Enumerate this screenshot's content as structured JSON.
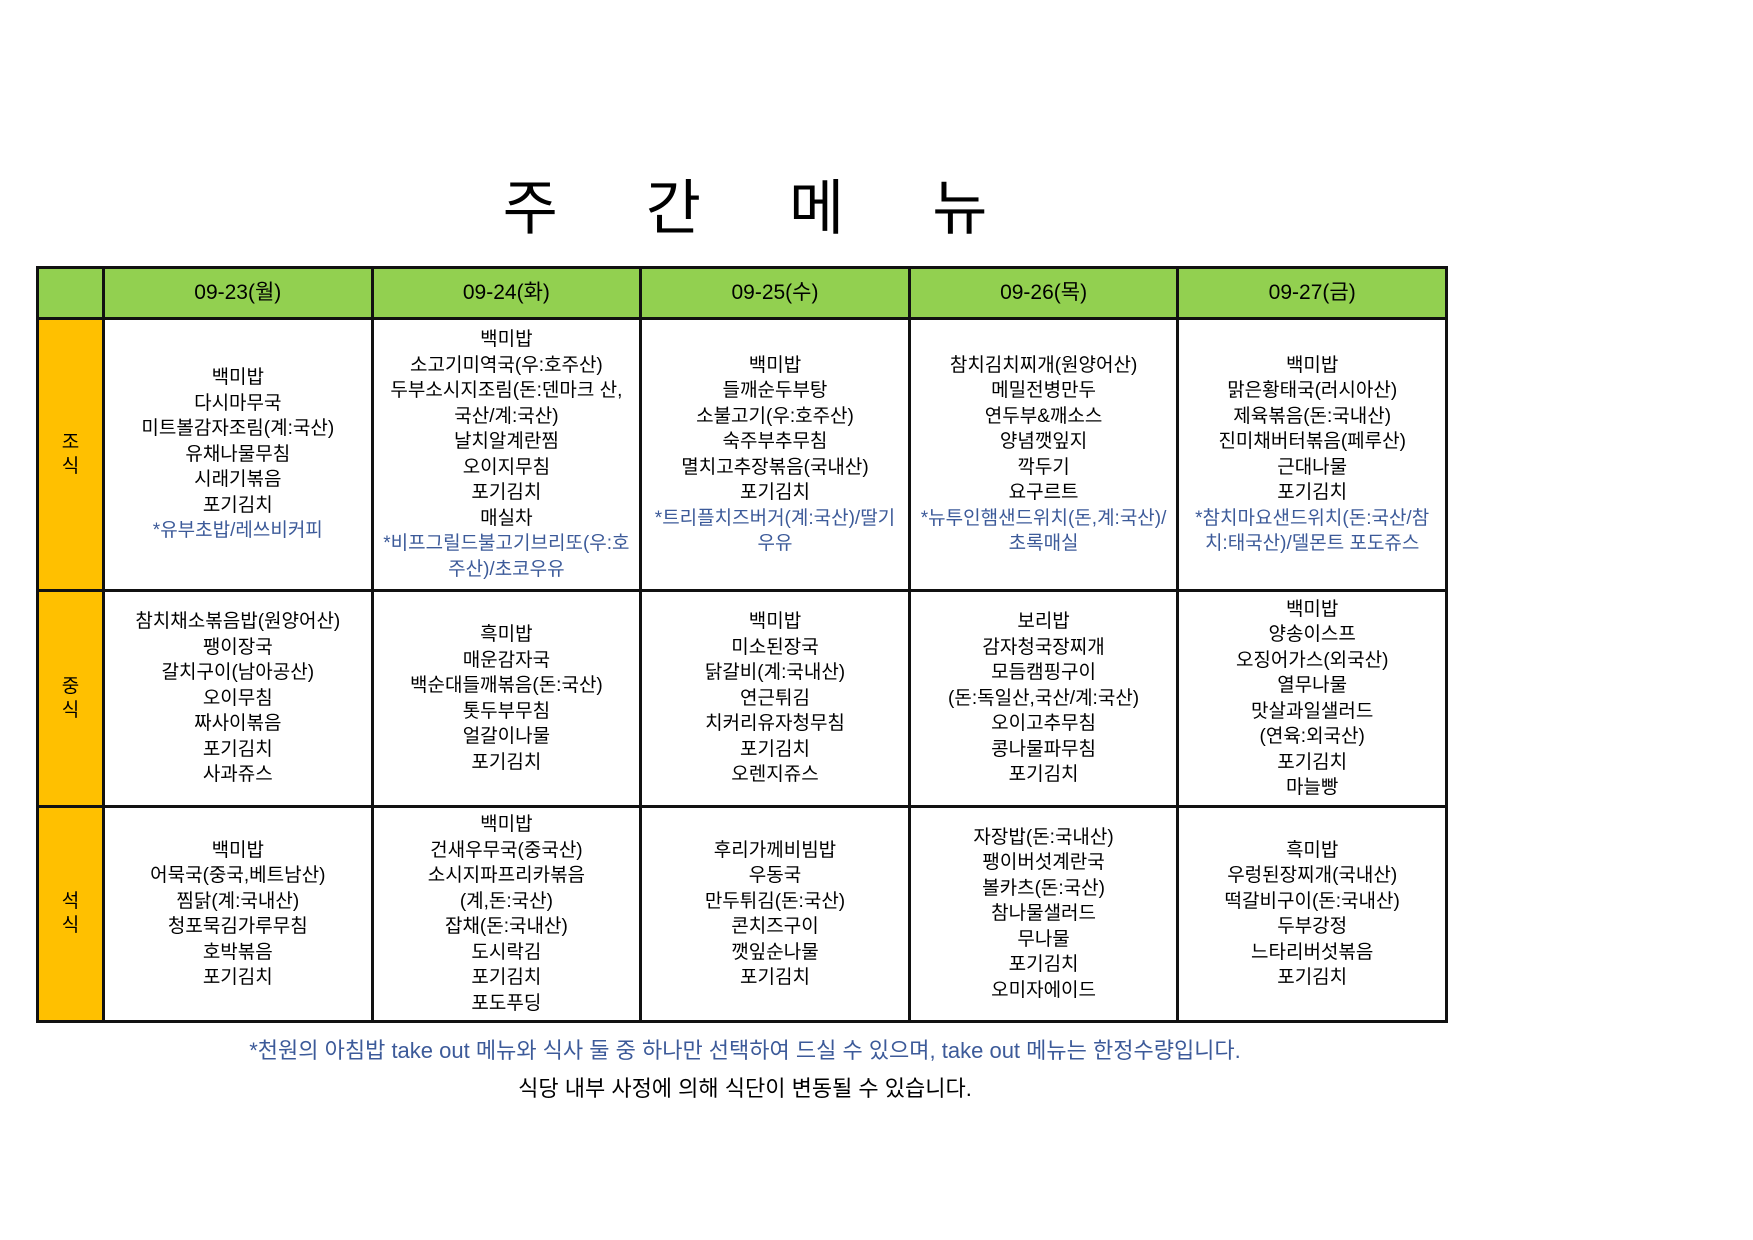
{
  "title": [
    "주",
    "간",
    "메",
    "뉴"
  ],
  "colors": {
    "header_bg": "#92d050",
    "meal_bg": "#ffc000",
    "takeout_text": "#3c5a99"
  },
  "days": [
    "09-23(월)",
    "09-24(화)",
    "09-25(수)",
    "09-26(목)",
    "09-27(금)"
  ],
  "meals": [
    {
      "label": [
        "조",
        "식"
      ],
      "cells": [
        {
          "items": [
            "백미밥",
            "다시마무국",
            "미트볼감자조림(계:국산)",
            "유채나물무침",
            "시래기볶음",
            "포기김치"
          ],
          "takeout": "*유부초밥/레쓰비커피"
        },
        {
          "items": [
            "백미밥",
            "소고기미역국(우:호주산)",
            "두부소시지조림(돈:덴마크 산, 국산/계:국산)",
            "날치알계란찜",
            "오이지무침",
            "포기김치",
            "매실차"
          ],
          "takeout": "*비프그릴드불고기브리또(우:호주산)/초코우유"
        },
        {
          "items": [
            "백미밥",
            "들깨순두부탕",
            "소불고기(우:호주산)",
            "숙주부추무침",
            "멸치고추장볶음(국내산)",
            "포기김치"
          ],
          "takeout": "*트리플치즈버거(계:국산)/딸기우유"
        },
        {
          "items": [
            "참치김치찌개(원양어산)",
            "메밀전병만두",
            "연두부&깨소스",
            "양념깻잎지",
            "깍두기",
            "요구르트"
          ],
          "takeout": "*뉴투인햄샌드위치(돈,계:국산)/초록매실"
        },
        {
          "items": [
            "백미밥",
            "맑은황태국(러시아산)",
            "제육볶음(돈:국내산)",
            "진미채버터볶음(페루산)",
            "근대나물",
            "포기김치"
          ],
          "takeout": "*참치마요샌드위치(돈:국산/참치:태국산)/델몬트 포도쥬스"
        }
      ]
    },
    {
      "label": [
        "중",
        "식"
      ],
      "cells": [
        {
          "items": [
            "참치채소볶음밥(원양어산)",
            "팽이장국",
            "갈치구이(남아공산)",
            "오이무침",
            "짜사이볶음",
            "포기김치",
            "사과쥬스"
          ]
        },
        {
          "items": [
            "흑미밥",
            "매운감자국",
            "백순대들깨볶음(돈:국산)",
            "톳두부무침",
            "얼갈이나물",
            "포기김치"
          ]
        },
        {
          "items": [
            "백미밥",
            "미소된장국",
            "닭갈비(계:국내산)",
            "연근튀김",
            "치커리유자청무침",
            "포기김치",
            "오렌지쥬스"
          ]
        },
        {
          "items": [
            "보리밥",
            "감자청국장찌개",
            "모듬캠핑구이",
            "(돈:독일산,국산/계:국산)",
            "오이고추무침",
            "콩나물파무침",
            "포기김치"
          ]
        },
        {
          "items": [
            "백미밥",
            "양송이스프",
            "오징어가스(외국산)",
            "열무나물",
            "맛살과일샐러드",
            "(연육:외국산)",
            "포기김치",
            "마늘빵"
          ]
        }
      ]
    },
    {
      "label": [
        "석",
        "식"
      ],
      "cells": [
        {
          "items": [
            "백미밥",
            "어묵국(중국,베트남산)",
            "찜닭(계:국내산)",
            "청포묵김가루무침",
            "호박볶음",
            "포기김치"
          ]
        },
        {
          "items": [
            "백미밥",
            "건새우무국(중국산)",
            "소시지파프리카볶음",
            "(계,돈:국산)",
            "잡채(돈:국내산)",
            "도시락김",
            "포기김치",
            "포도푸딩"
          ]
        },
        {
          "items": [
            "후리가께비빔밥",
            "우동국",
            "만두튀김(돈:국산)",
            "콘치즈구이",
            "깻잎순나물",
            "포기김치"
          ]
        },
        {
          "items": [
            "자장밥(돈:국내산)",
            "팽이버섯계란국",
            "볼카츠(돈:국산)",
            "참나물샐러드",
            "무나물",
            "포기김치",
            "오미자에이드"
          ]
        },
        {
          "items": [
            "흑미밥",
            "우렁된장찌개(국내산)",
            "떡갈비구이(돈:국내산)",
            "두부강정",
            "느타리버섯볶음",
            "포기김치"
          ]
        }
      ]
    }
  ],
  "notes": {
    "takeout": "*천원의 아침밥 take out 메뉴와 식사 둘 중 하나만 선택하여 드실 수 있으며, take out 메뉴는 한정수량입니다.",
    "change": "식당 내부 사정에 의해 식단이 변동될 수 있습니다."
  }
}
